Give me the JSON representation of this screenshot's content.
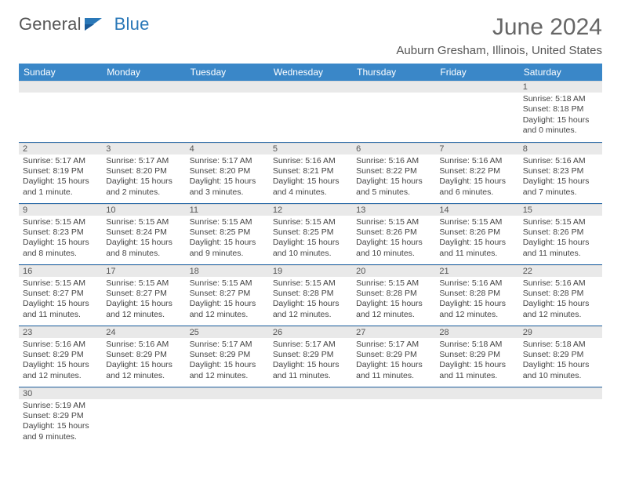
{
  "logo": {
    "word1": "General",
    "word2": "Blue"
  },
  "title": "June 2024",
  "subtitle": "Auburn Gresham, Illinois, United States",
  "colors": {
    "header_bg": "#3a87c8",
    "header_text": "#ffffff",
    "daynum_bg": "#e9e9e9",
    "row_divider": "#2a6aa8",
    "title_color": "#666666",
    "body_text": "#444444",
    "logo_gray": "#555555",
    "logo_blue": "#2a78b8",
    "background": "#ffffff"
  },
  "fontsizes": {
    "title": 30,
    "subtitle": 15,
    "weekday": 12,
    "daynum": 11,
    "body": 10.5
  },
  "weekdays": [
    "Sunday",
    "Monday",
    "Tuesday",
    "Wednesday",
    "Thursday",
    "Friday",
    "Saturday"
  ],
  "layout": {
    "first_weekday_index": 6,
    "days_in_month": 30,
    "columns": 7
  },
  "days": {
    "1": {
      "sunrise": "5:18 AM",
      "sunset": "8:18 PM",
      "daylight": "15 hours and 0 minutes."
    },
    "2": {
      "sunrise": "5:17 AM",
      "sunset": "8:19 PM",
      "daylight": "15 hours and 1 minute."
    },
    "3": {
      "sunrise": "5:17 AM",
      "sunset": "8:20 PM",
      "daylight": "15 hours and 2 minutes."
    },
    "4": {
      "sunrise": "5:17 AM",
      "sunset": "8:20 PM",
      "daylight": "15 hours and 3 minutes."
    },
    "5": {
      "sunrise": "5:16 AM",
      "sunset": "8:21 PM",
      "daylight": "15 hours and 4 minutes."
    },
    "6": {
      "sunrise": "5:16 AM",
      "sunset": "8:22 PM",
      "daylight": "15 hours and 5 minutes."
    },
    "7": {
      "sunrise": "5:16 AM",
      "sunset": "8:22 PM",
      "daylight": "15 hours and 6 minutes."
    },
    "8": {
      "sunrise": "5:16 AM",
      "sunset": "8:23 PM",
      "daylight": "15 hours and 7 minutes."
    },
    "9": {
      "sunrise": "5:15 AM",
      "sunset": "8:23 PM",
      "daylight": "15 hours and 8 minutes."
    },
    "10": {
      "sunrise": "5:15 AM",
      "sunset": "8:24 PM",
      "daylight": "15 hours and 8 minutes."
    },
    "11": {
      "sunrise": "5:15 AM",
      "sunset": "8:25 PM",
      "daylight": "15 hours and 9 minutes."
    },
    "12": {
      "sunrise": "5:15 AM",
      "sunset": "8:25 PM",
      "daylight": "15 hours and 10 minutes."
    },
    "13": {
      "sunrise": "5:15 AM",
      "sunset": "8:26 PM",
      "daylight": "15 hours and 10 minutes."
    },
    "14": {
      "sunrise": "5:15 AM",
      "sunset": "8:26 PM",
      "daylight": "15 hours and 11 minutes."
    },
    "15": {
      "sunrise": "5:15 AM",
      "sunset": "8:26 PM",
      "daylight": "15 hours and 11 minutes."
    },
    "16": {
      "sunrise": "5:15 AM",
      "sunset": "8:27 PM",
      "daylight": "15 hours and 11 minutes."
    },
    "17": {
      "sunrise": "5:15 AM",
      "sunset": "8:27 PM",
      "daylight": "15 hours and 12 minutes."
    },
    "18": {
      "sunrise": "5:15 AM",
      "sunset": "8:27 PM",
      "daylight": "15 hours and 12 minutes."
    },
    "19": {
      "sunrise": "5:15 AM",
      "sunset": "8:28 PM",
      "daylight": "15 hours and 12 minutes."
    },
    "20": {
      "sunrise": "5:15 AM",
      "sunset": "8:28 PM",
      "daylight": "15 hours and 12 minutes."
    },
    "21": {
      "sunrise": "5:16 AM",
      "sunset": "8:28 PM",
      "daylight": "15 hours and 12 minutes."
    },
    "22": {
      "sunrise": "5:16 AM",
      "sunset": "8:28 PM",
      "daylight": "15 hours and 12 minutes."
    },
    "23": {
      "sunrise": "5:16 AM",
      "sunset": "8:29 PM",
      "daylight": "15 hours and 12 minutes."
    },
    "24": {
      "sunrise": "5:16 AM",
      "sunset": "8:29 PM",
      "daylight": "15 hours and 12 minutes."
    },
    "25": {
      "sunrise": "5:17 AM",
      "sunset": "8:29 PM",
      "daylight": "15 hours and 12 minutes."
    },
    "26": {
      "sunrise": "5:17 AM",
      "sunset": "8:29 PM",
      "daylight": "15 hours and 11 minutes."
    },
    "27": {
      "sunrise": "5:17 AM",
      "sunset": "8:29 PM",
      "daylight": "15 hours and 11 minutes."
    },
    "28": {
      "sunrise": "5:18 AM",
      "sunset": "8:29 PM",
      "daylight": "15 hours and 11 minutes."
    },
    "29": {
      "sunrise": "5:18 AM",
      "sunset": "8:29 PM",
      "daylight": "15 hours and 10 minutes."
    },
    "30": {
      "sunrise": "5:19 AM",
      "sunset": "8:29 PM",
      "daylight": "15 hours and 9 minutes."
    }
  },
  "labels": {
    "sunrise": "Sunrise: ",
    "sunset": "Sunset: ",
    "daylight": "Daylight: "
  }
}
